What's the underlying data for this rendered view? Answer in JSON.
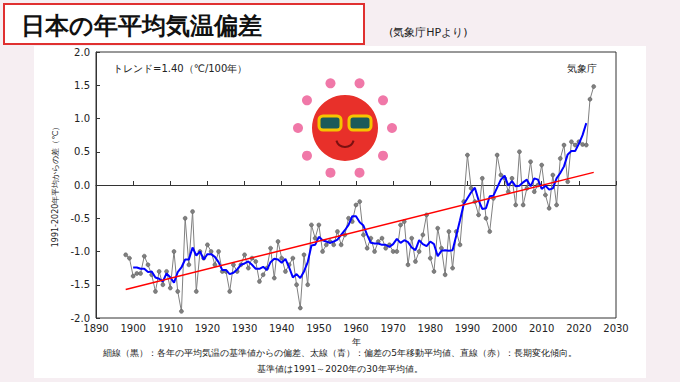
{
  "chart_data": {
    "type": "line",
    "title": "日本の年平均気温偏差",
    "subtitle": "(気象庁HPより)",
    "annotations": [
      "トレンド=1.40（℃/100年）",
      "気象庁"
    ],
    "notes": [
      "細線（黒）：各年の平均気温の基準値からの偏差、太線（青）：偏差の5年移動平均値、直線（赤）：長期変化傾向。",
      "基準値は1991～2020年の30年平均値。"
    ],
    "x_label": "年",
    "y_label": "1991-2020年平均からの差（℃）",
    "x": [
      1898,
      1899,
      1900,
      1901,
      1902,
      1903,
      1904,
      1905,
      1906,
      1907,
      1908,
      1909,
      1910,
      1911,
      1912,
      1913,
      1914,
      1915,
      1916,
      1917,
      1918,
      1919,
      1920,
      1921,
      1922,
      1923,
      1924,
      1925,
      1926,
      1927,
      1928,
      1929,
      1930,
      1931,
      1932,
      1933,
      1934,
      1935,
      1936,
      1937,
      1938,
      1939,
      1940,
      1941,
      1942,
      1943,
      1944,
      1945,
      1946,
      1947,
      1948,
      1949,
      1950,
      1951,
      1952,
      1953,
      1954,
      1955,
      1956,
      1957,
      1958,
      1959,
      1960,
      1961,
      1962,
      1963,
      1964,
      1965,
      1966,
      1967,
      1968,
      1969,
      1970,
      1971,
      1972,
      1973,
      1974,
      1975,
      1976,
      1977,
      1978,
      1979,
      1980,
      1981,
      1982,
      1983,
      1984,
      1985,
      1986,
      1987,
      1988,
      1989,
      1990,
      1991,
      1992,
      1993,
      1994,
      1995,
      1996,
      1997,
      1998,
      1999,
      2000,
      2001,
      2002,
      2003,
      2004,
      2005,
      2006,
      2007,
      2008,
      2009,
      2010,
      2011,
      2012,
      2013,
      2014,
      2015,
      2016,
      2017,
      2018,
      2019,
      2020,
      2021,
      2022,
      2023,
      2024
    ],
    "series": [
      {
        "color": "#808080",
        "marker": "circle",
        "line_style": "solid",
        "values": [
          -1.05,
          -1.1,
          -1.37,
          -1.33,
          -1.33,
          -1.07,
          -1.2,
          -1.35,
          -1.6,
          -1.3,
          -1.5,
          -1.3,
          -1.55,
          -1.0,
          -1.6,
          -1.9,
          -0.5,
          -1.2,
          -0.4,
          -1.6,
          -1.0,
          -1.1,
          -0.9,
          -1.0,
          -1.2,
          -1.0,
          -1.3,
          -1.3,
          -1.6,
          -1.2,
          -1.3,
          -1.2,
          -1.05,
          -1.25,
          -1.1,
          -1.15,
          -1.45,
          -1.35,
          -1.25,
          -0.95,
          -1.4,
          -0.85,
          -1.1,
          -1.3,
          -1.2,
          -1.1,
          -1.5,
          -1.85,
          -1.05,
          -1.5,
          -0.6,
          -0.8,
          -0.6,
          -1.0,
          -0.9,
          -0.85,
          -0.9,
          -0.7,
          -0.9,
          -0.75,
          -0.5,
          -0.55,
          -0.3,
          -0.25,
          -0.75,
          -0.95,
          -0.8,
          -1.0,
          -0.85,
          -0.8,
          -0.95,
          -0.9,
          -1.0,
          -1.0,
          -0.6,
          -0.55,
          -1.2,
          -0.8,
          -1.15,
          -1.0,
          -0.75,
          -0.45,
          -1.1,
          -1.3,
          -0.65,
          -0.95,
          -1.35,
          -0.7,
          -1.25,
          -0.7,
          -0.9,
          -0.25,
          0.45,
          -0.05,
          -0.25,
          -0.45,
          0.1,
          -0.5,
          -0.7,
          -0.2,
          0.45,
          0.15,
          0.1,
          -0.1,
          0.1,
          -0.3,
          0.5,
          -0.3,
          -0.05,
          0.35,
          -0.1,
          0,
          0.3,
          -0.15,
          -0.35,
          0.15,
          -0.3,
          0.4,
          0.6,
          0.05,
          0.65,
          0.6,
          0.65,
          0.61,
          0.6,
          1.29,
          1.48
        ]
      },
      {
        "color": "#0000ff",
        "marker": "none",
        "line_style": "solid",
        "values": [
          null,
          null,
          -1.24,
          -1.24,
          -1.26,
          -1.26,
          -1.31,
          -1.3,
          -1.39,
          -1.41,
          -1.45,
          -1.33,
          -1.39,
          -1.47,
          -1.31,
          -1.24,
          -1.12,
          -1.12,
          -0.94,
          -1.06,
          -1.0,
          -1.12,
          -1.04,
          -1.04,
          -1.08,
          -1.16,
          -1.28,
          -1.28,
          -1.34,
          -1.32,
          -1.27,
          -1.2,
          -1.18,
          -1.15,
          -1.2,
          -1.26,
          -1.26,
          -1.23,
          -1.28,
          -1.16,
          -1.11,
          -1.12,
          -1.17,
          -1.11,
          -1.24,
          -1.39,
          -1.34,
          -1.4,
          -1.3,
          -1.16,
          -0.91,
          -0.9,
          -0.78,
          -0.83,
          -0.85,
          -0.87,
          -0.85,
          -0.82,
          -0.75,
          -0.68,
          -0.6,
          -0.47,
          -0.47,
          -0.56,
          -0.61,
          -0.75,
          -0.87,
          -0.88,
          -0.88,
          -0.9,
          -0.9,
          -0.93,
          -0.89,
          -0.81,
          -0.87,
          -0.83,
          -0.86,
          -0.94,
          -0.98,
          -0.83,
          -0.89,
          -0.92,
          -0.85,
          -0.89,
          -1.07,
          -0.99,
          -0.98,
          -0.99,
          -0.98,
          -0.76,
          -0.53,
          -0.29,
          -0.2,
          -0.11,
          -0.04,
          -0.23,
          -0.36,
          -0.35,
          -0.17,
          -0.16,
          -0.04,
          0.08,
          0.14,
          -0.01,
          0.06,
          -0.02,
          -0.01,
          0.04,
          0.08,
          -0.02,
          0.1,
          0.08,
          -0.06,
          -0.01,
          -0.07,
          -0.05,
          0.1,
          0.18,
          0.28,
          0.46,
          0.51,
          0.51,
          0.62,
          0.75,
          0.93,
          null,
          null
        ]
      },
      {
        "color": "#ff0000",
        "marker": "none",
        "line_style": "solid",
        "x": [
          1898,
          2024
        ],
        "values": [
          -1.57,
          0.19
        ]
      }
    ],
    "xlim": [
      1890,
      2030
    ],
    "xticks": [
      1890,
      1900,
      1910,
      1920,
      1930,
      1940,
      1950,
      1960,
      1970,
      1980,
      1990,
      2000,
      2010,
      2020,
      2030
    ],
    "ylim": [
      -2,
      2
    ],
    "yticks": [
      {
        "value": -2,
        "label": "-2.0"
      },
      -1.5,
      {
        "value": -1,
        "label": "-1.0"
      },
      -0.5,
      {
        "value": 0,
        "label": "0.0"
      },
      0.5,
      {
        "value": 1,
        "label": "1.0"
      },
      1.5,
      {
        "value": 2,
        "label": "2.0"
      }
    ],
    "grid": false
  }
}
